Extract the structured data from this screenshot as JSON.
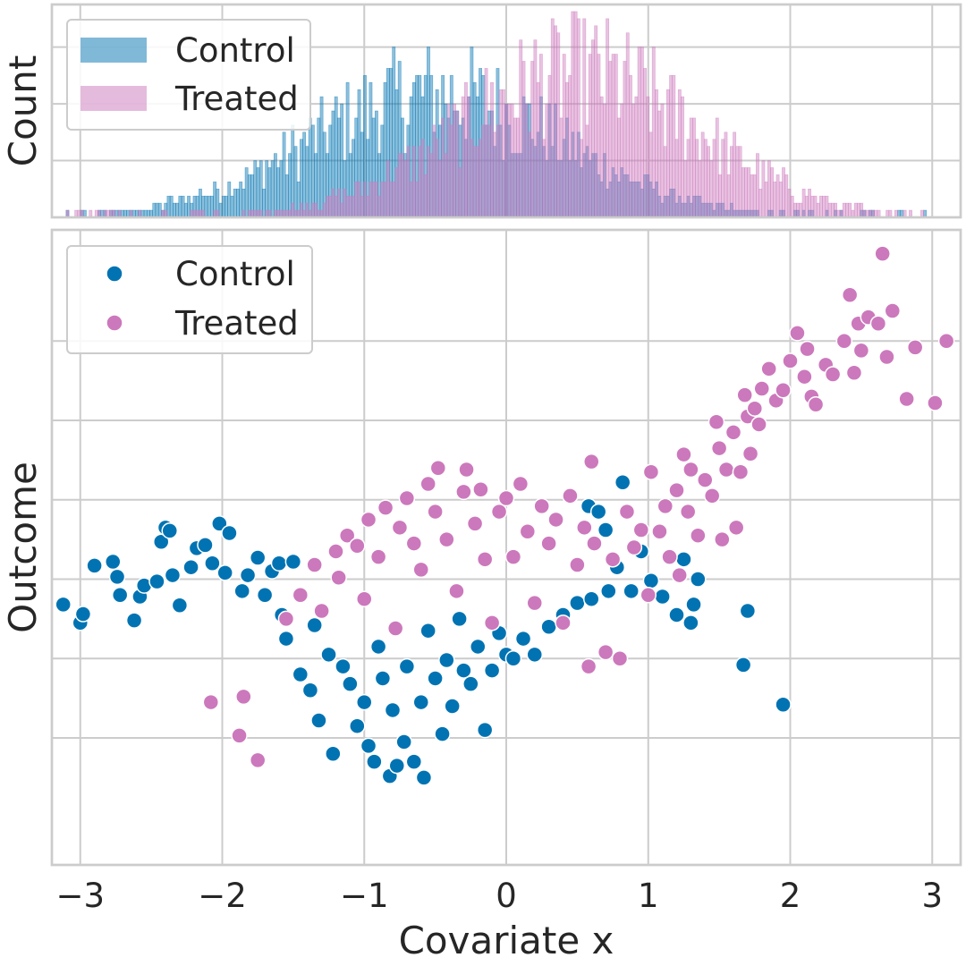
{
  "chart_data": [
    {
      "type": "histogram",
      "ylabel": "Count",
      "xlim": [
        -3.2,
        3.2
      ],
      "ylim": [
        0,
        30
      ],
      "grid": true,
      "legend_position": "upper-left",
      "series": [
        {
          "name": "Control",
          "color": "#0173b2",
          "center": -0.5,
          "spread": 0.9
        },
        {
          "name": "Treated",
          "color": "#cc78bc",
          "center": 0.5,
          "spread": 0.85
        }
      ],
      "bins": {
        "x_start": -3.1,
        "x_end": 3.0,
        "count": 300,
        "approx_peak_counts": {
          "Control": 24,
          "Treated": 28
        }
      }
    },
    {
      "type": "scatter",
      "xlabel": "Covariate x",
      "ylabel": "Outcome",
      "xlim": [
        -3.2,
        3.2
      ],
      "ylim": [
        -3.6,
        4.4
      ],
      "xticks": [
        -3,
        -2,
        -1,
        0,
        1,
        2,
        3
      ],
      "xtick_labels": [
        "−3",
        "−2",
        "−1",
        "0",
        "1",
        "2",
        "3"
      ],
      "yticks": [
        -2,
        -1,
        0,
        1,
        2,
        3
      ],
      "grid": true,
      "legend_position": "upper-left",
      "series": [
        {
          "name": "Control",
          "color": "#0173b2",
          "points": [
            [
              -3.12,
              -0.32
            ],
            [
              -3.0,
              -0.55
            ],
            [
              -2.98,
              -0.44
            ],
            [
              -2.9,
              0.17
            ],
            [
              -2.77,
              0.22
            ],
            [
              -2.74,
              0.03
            ],
            [
              -2.72,
              -0.2
            ],
            [
              -2.62,
              -0.52
            ],
            [
              -2.58,
              -0.22
            ],
            [
              -2.55,
              -0.08
            ],
            [
              -2.46,
              -0.03
            ],
            [
              -2.43,
              0.47
            ],
            [
              -2.4,
              0.65
            ],
            [
              -2.37,
              0.61
            ],
            [
              -2.35,
              0.05
            ],
            [
              -2.3,
              -0.33
            ],
            [
              -2.22,
              0.15
            ],
            [
              -2.18,
              0.39
            ],
            [
              -2.12,
              0.43
            ],
            [
              -2.07,
              0.2
            ],
            [
              -2.02,
              0.7
            ],
            [
              -1.98,
              0.08
            ],
            [
              -1.95,
              0.58
            ],
            [
              -1.86,
              -0.15
            ],
            [
              -1.82,
              0.05
            ],
            [
              -1.75,
              0.27
            ],
            [
              -1.7,
              -0.2
            ],
            [
              -1.65,
              0.1
            ],
            [
              -1.6,
              0.2
            ],
            [
              -1.58,
              -0.45
            ],
            [
              -1.55,
              -0.75
            ],
            [
              -1.5,
              0.22
            ],
            [
              -1.45,
              -1.2
            ],
            [
              -1.38,
              -1.4
            ],
            [
              -1.35,
              -0.58
            ],
            [
              -1.32,
              -1.78
            ],
            [
              -1.25,
              -0.95
            ],
            [
              -1.22,
              -2.2
            ],
            [
              -1.15,
              -1.1
            ],
            [
              -1.1,
              -1.32
            ],
            [
              -1.05,
              -1.85
            ],
            [
              -1.0,
              -1.55
            ],
            [
              -0.97,
              -2.1
            ],
            [
              -0.93,
              -2.3
            ],
            [
              -0.9,
              -0.85
            ],
            [
              -0.87,
              -1.25
            ],
            [
              -0.82,
              -2.48
            ],
            [
              -0.8,
              -1.65
            ],
            [
              -0.77,
              -2.35
            ],
            [
              -0.72,
              -2.05
            ],
            [
              -0.7,
              -1.1
            ],
            [
              -0.65,
              -2.3
            ],
            [
              -0.6,
              -1.55
            ],
            [
              -0.58,
              -2.5
            ],
            [
              -0.55,
              -0.65
            ],
            [
              -0.5,
              -1.25
            ],
            [
              -0.45,
              -1.95
            ],
            [
              -0.42,
              -1.02
            ],
            [
              -0.38,
              -1.6
            ],
            [
              -0.33,
              -0.5
            ],
            [
              -0.3,
              -1.15
            ],
            [
              -0.25,
              -1.32
            ],
            [
              -0.2,
              -0.85
            ],
            [
              -0.15,
              -1.9
            ],
            [
              -0.1,
              -1.15
            ],
            [
              -0.05,
              -0.68
            ],
            [
              0.0,
              -0.95
            ],
            [
              0.05,
              -1.0
            ],
            [
              0.12,
              -0.75
            ],
            [
              0.2,
              -0.95
            ],
            [
              0.3,
              -0.6
            ],
            [
              0.4,
              -0.45
            ],
            [
              0.5,
              -0.3
            ],
            [
              0.58,
              0.92
            ],
            [
              0.6,
              -0.25
            ],
            [
              0.65,
              0.85
            ],
            [
              0.7,
              0.62
            ],
            [
              0.72,
              -0.15
            ],
            [
              0.78,
              0.15
            ],
            [
              0.82,
              1.22
            ],
            [
              0.88,
              -0.15
            ],
            [
              0.95,
              0.35
            ],
            [
              1.02,
              -0.02
            ],
            [
              1.1,
              -0.22
            ],
            [
              1.2,
              -0.45
            ],
            [
              1.25,
              0.25
            ],
            [
              1.3,
              -0.55
            ],
            [
              1.32,
              -0.32
            ],
            [
              1.35,
              0.0
            ],
            [
              1.67,
              -1.08
            ],
            [
              1.7,
              -0.4
            ],
            [
              1.95,
              -1.58
            ]
          ]
        },
        {
          "name": "Treated",
          "color": "#cc78bc",
          "points": [
            [
              -2.08,
              -1.55
            ],
            [
              -1.88,
              -1.97
            ],
            [
              -1.85,
              -1.48
            ],
            [
              -1.75,
              -2.28
            ],
            [
              -1.55,
              -0.5
            ],
            [
              -1.45,
              -0.2
            ],
            [
              -1.35,
              0.18
            ],
            [
              -1.3,
              -0.4
            ],
            [
              -1.2,
              0.35
            ],
            [
              -1.18,
              0.02
            ],
            [
              -1.12,
              0.55
            ],
            [
              -1.05,
              0.42
            ],
            [
              -1.0,
              -0.25
            ],
            [
              -0.97,
              0.75
            ],
            [
              -0.9,
              0.28
            ],
            [
              -0.85,
              0.9
            ],
            [
              -0.78,
              -0.62
            ],
            [
              -0.75,
              0.65
            ],
            [
              -0.7,
              1.02
            ],
            [
              -0.65,
              0.45
            ],
            [
              -0.6,
              0.12
            ],
            [
              -0.55,
              1.2
            ],
            [
              -0.5,
              0.85
            ],
            [
              -0.48,
              1.4
            ],
            [
              -0.42,
              0.5
            ],
            [
              -0.35,
              -0.15
            ],
            [
              -0.3,
              1.1
            ],
            [
              -0.28,
              1.38
            ],
            [
              -0.22,
              0.7
            ],
            [
              -0.18,
              1.13
            ],
            [
              -0.15,
              0.25
            ],
            [
              -0.1,
              -0.55
            ],
            [
              -0.05,
              0.85
            ],
            [
              0.0,
              1.02
            ],
            [
              0.05,
              0.28
            ],
            [
              0.1,
              1.2
            ],
            [
              0.15,
              0.6
            ],
            [
              0.2,
              -0.3
            ],
            [
              0.25,
              0.92
            ],
            [
              0.3,
              0.45
            ],
            [
              0.35,
              0.75
            ],
            [
              0.4,
              -0.55
            ],
            [
              0.45,
              1.05
            ],
            [
              0.5,
              0.18
            ],
            [
              0.55,
              0.65
            ],
            [
              0.58,
              -1.1
            ],
            [
              0.6,
              1.48
            ],
            [
              0.62,
              0.45
            ],
            [
              0.7,
              -0.92
            ],
            [
              0.75,
              0.25
            ],
            [
              0.8,
              -1.0
            ],
            [
              0.85,
              0.85
            ],
            [
              0.9,
              0.4
            ],
            [
              0.95,
              0.62
            ],
            [
              1.0,
              -0.2
            ],
            [
              1.02,
              1.35
            ],
            [
              1.08,
              0.6
            ],
            [
              1.12,
              0.92
            ],
            [
              1.15,
              0.28
            ],
            [
              1.2,
              1.12
            ],
            [
              1.22,
              0.05
            ],
            [
              1.25,
              1.57
            ],
            [
              1.28,
              0.85
            ],
            [
              1.3,
              1.38
            ],
            [
              1.35,
              0.55
            ],
            [
              1.4,
              1.25
            ],
            [
              1.45,
              1.05
            ],
            [
              1.48,
              1.98
            ],
            [
              1.5,
              1.65
            ],
            [
              1.52,
              0.5
            ],
            [
              1.55,
              1.38
            ],
            [
              1.6,
              1.85
            ],
            [
              1.62,
              0.65
            ],
            [
              1.65,
              1.35
            ],
            [
              1.68,
              2.32
            ],
            [
              1.7,
              2.05
            ],
            [
              1.72,
              1.58
            ],
            [
              1.75,
              2.15
            ],
            [
              1.78,
              1.95
            ],
            [
              1.8,
              2.4
            ],
            [
              1.85,
              2.65
            ],
            [
              1.9,
              2.25
            ],
            [
              1.95,
              2.38
            ],
            [
              2.0,
              2.75
            ],
            [
              2.05,
              3.1
            ],
            [
              2.1,
              2.55
            ],
            [
              2.12,
              2.9
            ],
            [
              2.15,
              2.3
            ],
            [
              2.18,
              2.2
            ],
            [
              2.25,
              2.7
            ],
            [
              2.3,
              2.58
            ],
            [
              2.38,
              3.0
            ],
            [
              2.42,
              3.58
            ],
            [
              2.45,
              2.6
            ],
            [
              2.48,
              3.22
            ],
            [
              2.5,
              2.88
            ],
            [
              2.55,
              3.3
            ],
            [
              2.62,
              3.22
            ],
            [
              2.65,
              4.1
            ],
            [
              2.68,
              2.8
            ],
            [
              2.72,
              3.38
            ],
            [
              2.82,
              2.27
            ],
            [
              2.88,
              2.92
            ],
            [
              3.02,
              2.22
            ],
            [
              3.1,
              3.0
            ]
          ]
        }
      ]
    }
  ]
}
